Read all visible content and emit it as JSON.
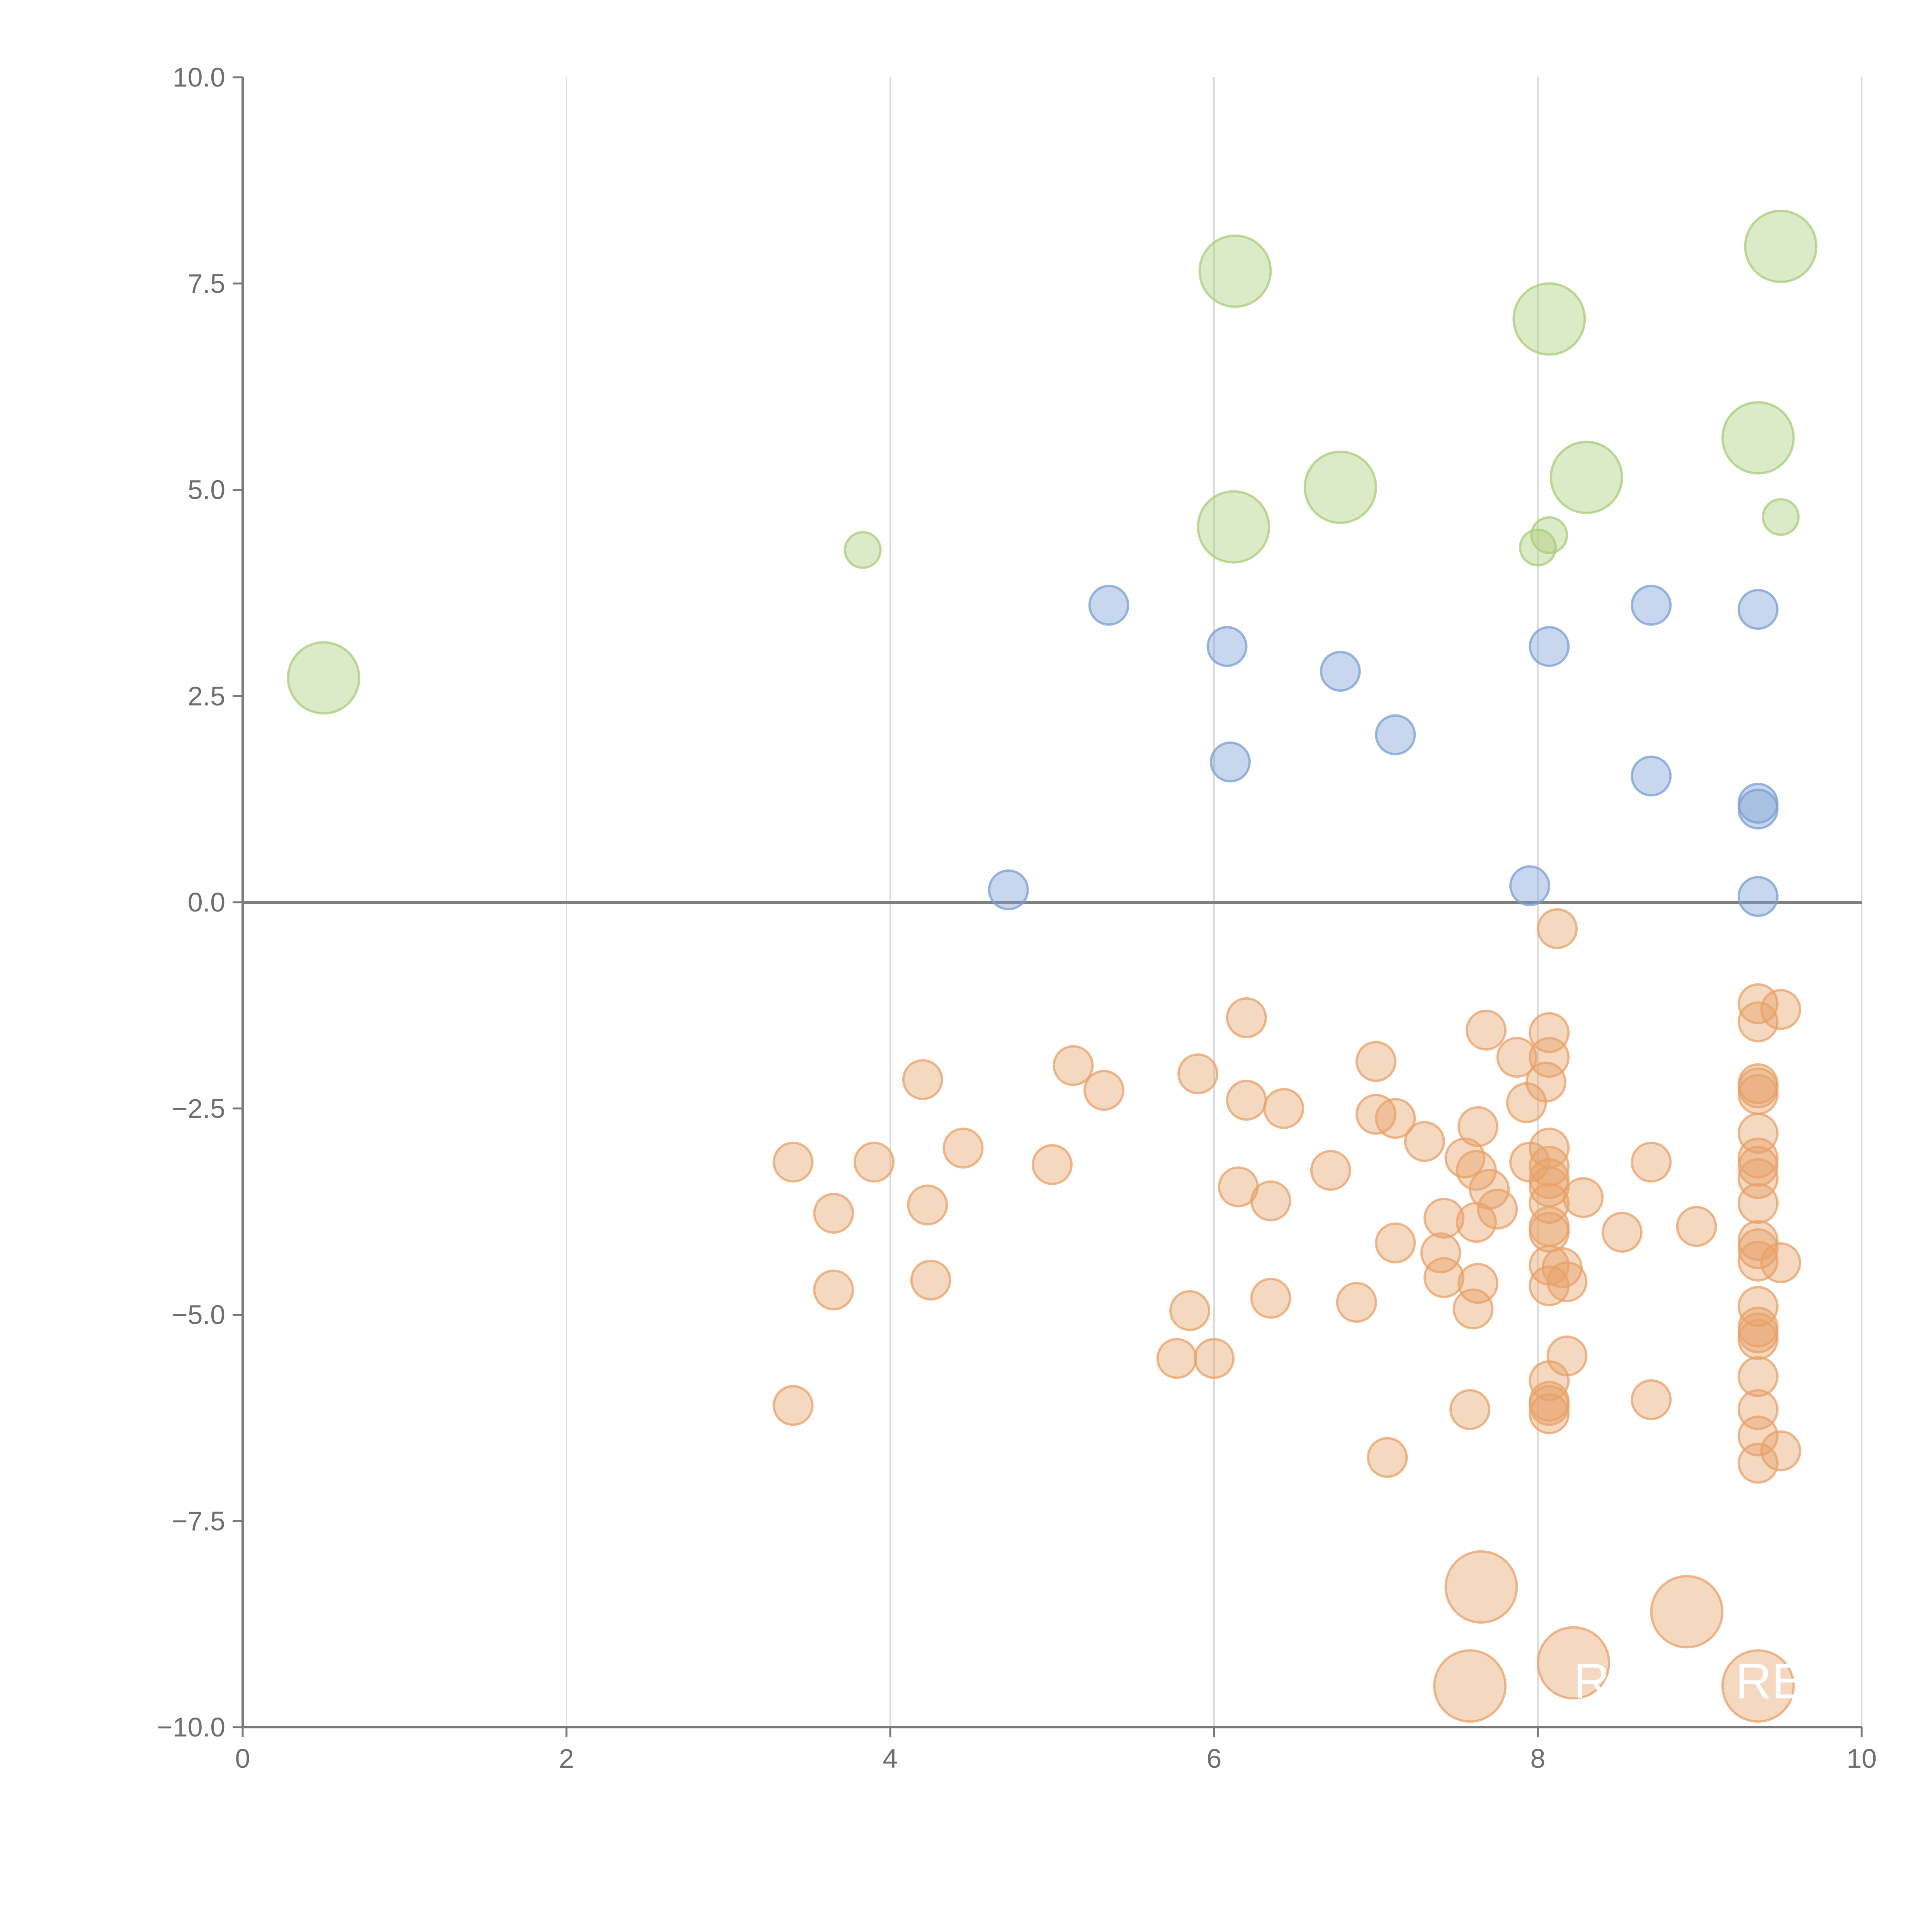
{
  "chart_data": {
    "type": "scatter",
    "title": "",
    "xlabel": "",
    "ylabel": "",
    "xlim": [
      0,
      10
    ],
    "ylim": [
      -10,
      10
    ],
    "x_ticks": [
      "0",
      "2",
      "4",
      "6",
      "8",
      "10"
    ],
    "y_ticks": [
      "10.0",
      "7.5",
      "5.0",
      "2.5",
      "0.0",
      "−2.5",
      "−5.0",
      "−7.5",
      "−10.0"
    ],
    "x_tick_values": [
      0,
      2,
      4,
      6,
      8,
      10
    ],
    "y_tick_values": [
      10,
      7.5,
      5,
      2.5,
      0,
      -2.5,
      -5,
      -7.5,
      -10
    ],
    "grid": "vertical",
    "reference_line_y": 0,
    "series": [
      {
        "name": "green",
        "color": "#a9cc7a",
        "points": [
          {
            "x": 0.5,
            "y": 2.72,
            "size": 2
          },
          {
            "x": 3.83,
            "y": 4.27,
            "size": 1
          },
          {
            "x": 6.13,
            "y": 7.65,
            "size": 2
          },
          {
            "x": 6.12,
            "y": 4.55,
            "size": 2
          },
          {
            "x": 6.78,
            "y": 5.03,
            "size": 2
          },
          {
            "x": 8.07,
            "y": 7.07,
            "size": 2
          },
          {
            "x": 8.3,
            "y": 5.15,
            "size": 2
          },
          {
            "x": 8.0,
            "y": 4.3,
            "size": 1
          },
          {
            "x": 8.07,
            "y": 4.45,
            "size": 1
          },
          {
            "x": 9.36,
            "y": 5.63,
            "size": 2
          },
          {
            "x": 9.5,
            "y": 7.95,
            "size": 2
          },
          {
            "x": 9.5,
            "y": 4.67,
            "size": 1
          }
        ]
      },
      {
        "name": "blue",
        "color": "#7b9fd3",
        "points": [
          {
            "x": 4.73,
            "y": 0.15
          },
          {
            "x": 5.35,
            "y": 3.6
          },
          {
            "x": 6.08,
            "y": 3.1
          },
          {
            "x": 6.1,
            "y": 1.7
          },
          {
            "x": 6.78,
            "y": 2.8
          },
          {
            "x": 7.12,
            "y": 2.03
          },
          {
            "x": 7.95,
            "y": 0.2
          },
          {
            "x": 8.07,
            "y": 3.1
          },
          {
            "x": 8.7,
            "y": 3.6
          },
          {
            "x": 8.7,
            "y": 1.53
          },
          {
            "x": 9.36,
            "y": 3.55
          },
          {
            "x": 9.36,
            "y": 1.2
          },
          {
            "x": 9.36,
            "y": 1.13
          },
          {
            "x": 9.36,
            "y": 0.07
          }
        ]
      },
      {
        "name": "orange",
        "color": "#e8a26a",
        "points": [
          {
            "x": 3.4,
            "y": -3.15
          },
          {
            "x": 3.4,
            "y": -6.1
          },
          {
            "x": 3.65,
            "y": -3.77
          },
          {
            "x": 3.65,
            "y": -4.7
          },
          {
            "x": 3.9,
            "y": -3.15
          },
          {
            "x": 4.2,
            "y": -2.15
          },
          {
            "x": 4.23,
            "y": -3.67
          },
          {
            "x": 4.25,
            "y": -4.58
          },
          {
            "x": 4.45,
            "y": -2.98
          },
          {
            "x": 5.0,
            "y": -3.18
          },
          {
            "x": 5.13,
            "y": -1.98
          },
          {
            "x": 5.32,
            "y": -2.28
          },
          {
            "x": 5.77,
            "y": -5.53
          },
          {
            "x": 5.85,
            "y": -4.95
          },
          {
            "x": 5.9,
            "y": -2.08
          },
          {
            "x": 6.0,
            "y": -5.53
          },
          {
            "x": 6.15,
            "y": -3.45
          },
          {
            "x": 6.2,
            "y": -1.4
          },
          {
            "x": 6.2,
            "y": -2.4
          },
          {
            "x": 6.35,
            "y": -3.62
          },
          {
            "x": 6.35,
            "y": -4.8
          },
          {
            "x": 6.43,
            "y": -2.5
          },
          {
            "x": 6.72,
            "y": -3.25
          },
          {
            "x": 6.88,
            "y": -4.85
          },
          {
            "x": 7.0,
            "y": -1.93
          },
          {
            "x": 7.0,
            "y": -2.57
          },
          {
            "x": 7.07,
            "y": -6.73
          },
          {
            "x": 7.12,
            "y": -4.13
          },
          {
            "x": 7.12,
            "y": -2.62
          },
          {
            "x": 7.3,
            "y": -2.9
          },
          {
            "x": 7.4,
            "y": -4.25
          },
          {
            "x": 7.42,
            "y": -3.83
          },
          {
            "x": 7.42,
            "y": -4.55
          },
          {
            "x": 7.55,
            "y": -3.1
          },
          {
            "x": 7.58,
            "y": -6.15
          },
          {
            "x": 7.6,
            "y": -4.93
          },
          {
            "x": 7.62,
            "y": -3.25
          },
          {
            "x": 7.62,
            "y": -3.88
          },
          {
            "x": 7.63,
            "y": -2.72
          },
          {
            "x": 7.63,
            "y": -4.62
          },
          {
            "x": 7.68,
            "y": -1.55
          },
          {
            "x": 7.7,
            "y": -3.48
          },
          {
            "x": 7.75,
            "y": -3.72
          },
          {
            "x": 7.87,
            "y": -1.88
          },
          {
            "x": 7.93,
            "y": -2.43
          },
          {
            "x": 7.95,
            "y": -3.15
          },
          {
            "x": 8.05,
            "y": -2.18
          },
          {
            "x": 8.07,
            "y": -1.58
          },
          {
            "x": 8.07,
            "y": -1.88
          },
          {
            "x": 8.07,
            "y": -2.98
          },
          {
            "x": 8.07,
            "y": -3.2
          },
          {
            "x": 8.07,
            "y": -3.35
          },
          {
            "x": 8.07,
            "y": -3.45
          },
          {
            "x": 8.07,
            "y": -3.65
          },
          {
            "x": 8.07,
            "y": -3.93
          },
          {
            "x": 8.07,
            "y": -4.0
          },
          {
            "x": 8.07,
            "y": -4.4
          },
          {
            "x": 8.07,
            "y": -4.65
          },
          {
            "x": 8.07,
            "y": -5.8
          },
          {
            "x": 8.07,
            "y": -6.05
          },
          {
            "x": 8.07,
            "y": -6.1
          },
          {
            "x": 8.07,
            "y": -6.2
          },
          {
            "x": 8.12,
            "y": -0.32
          },
          {
            "x": 8.15,
            "y": -4.43
          },
          {
            "x": 8.18,
            "y": -4.6
          },
          {
            "x": 8.18,
            "y": -5.5
          },
          {
            "x": 8.28,
            "y": -3.58
          },
          {
            "x": 8.52,
            "y": -4.0
          },
          {
            "x": 8.7,
            "y": -3.15
          },
          {
            "x": 8.7,
            "y": -6.03
          },
          {
            "x": 8.98,
            "y": -3.93
          },
          {
            "x": 9.36,
            "y": -1.23
          },
          {
            "x": 9.36,
            "y": -1.45
          },
          {
            "x": 9.36,
            "y": -2.2
          },
          {
            "x": 9.36,
            "y": -2.25
          },
          {
            "x": 9.36,
            "y": -2.33
          },
          {
            "x": 9.36,
            "y": -2.8
          },
          {
            "x": 9.36,
            "y": -3.1
          },
          {
            "x": 9.36,
            "y": -3.2
          },
          {
            "x": 9.36,
            "y": -3.35
          },
          {
            "x": 9.36,
            "y": -3.65
          },
          {
            "x": 9.36,
            "y": -4.1
          },
          {
            "x": 9.36,
            "y": -4.2
          },
          {
            "x": 9.36,
            "y": -4.35
          },
          {
            "x": 9.36,
            "y": -4.9
          },
          {
            "x": 9.36,
            "y": -5.15
          },
          {
            "x": 9.36,
            "y": -5.22
          },
          {
            "x": 9.36,
            "y": -5.3
          },
          {
            "x": 9.36,
            "y": -5.75
          },
          {
            "x": 9.36,
            "y": -6.15
          },
          {
            "x": 9.36,
            "y": -6.47
          },
          {
            "x": 9.36,
            "y": -6.8
          },
          {
            "x": 9.5,
            "y": -1.3
          },
          {
            "x": 9.5,
            "y": -4.37
          },
          {
            "x": 9.5,
            "y": -6.65
          },
          {
            "x": 7.65,
            "y": -8.3,
            "size": 2
          },
          {
            "x": 8.92,
            "y": -8.6,
            "size": 2
          },
          {
            "x": 8.22,
            "y": -9.22,
            "size": 2
          },
          {
            "x": 7.58,
            "y": -9.5,
            "size": 2
          },
          {
            "x": 9.36,
            "y": -9.5,
            "size": 2
          }
        ]
      }
    ],
    "annotations": [
      {
        "text": "RE",
        "x": 8.22,
        "y": -9.65
      },
      {
        "text": "RE",
        "x": 9.22,
        "y": -9.65
      }
    ]
  }
}
